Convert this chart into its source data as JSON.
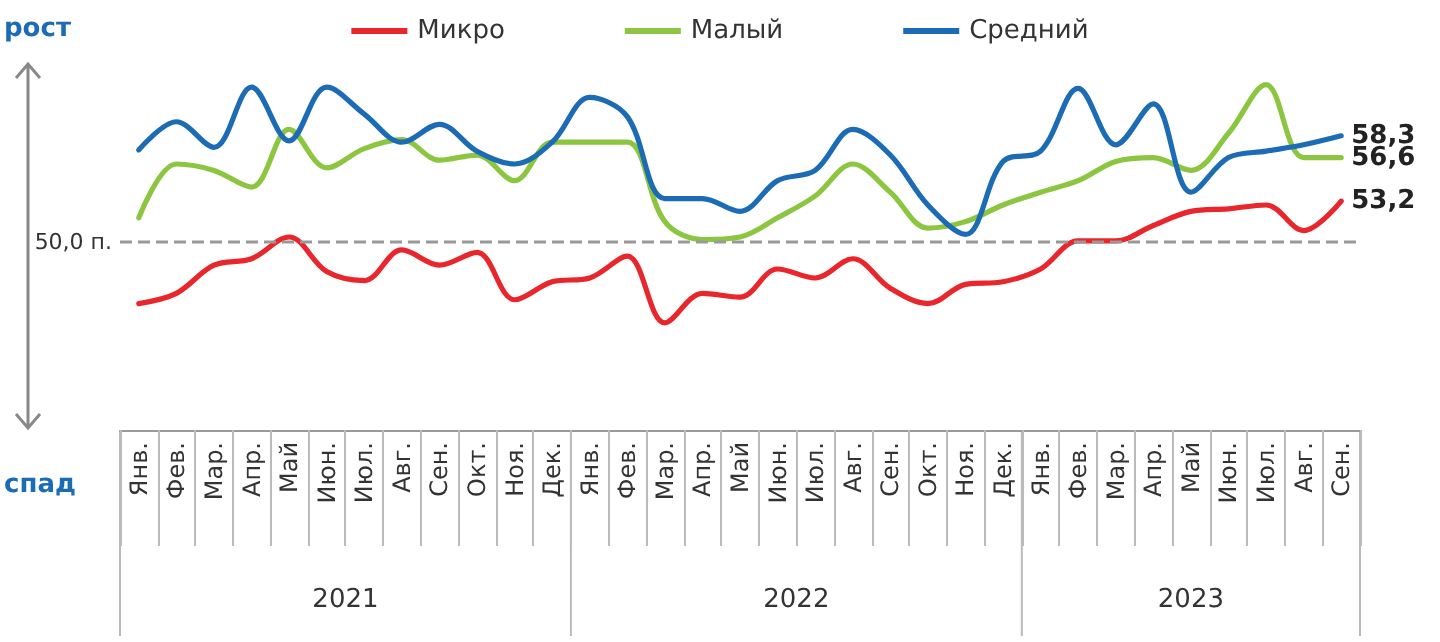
{
  "chart_data": {
    "type": "line",
    "categories": [
      "Янв.",
      "Фев.",
      "Мар.",
      "Апр.",
      "Май",
      "Июн.",
      "Июл.",
      "Авг.",
      "Сен.",
      "Окт.",
      "Ноя.",
      "Дек.",
      "Янв.",
      "Фев.",
      "Мар.",
      "Апр.",
      "Май",
      "Июн.",
      "Июл.",
      "Авг.",
      "Сен.",
      "Окт.",
      "Ноя.",
      "Дек.",
      "Янв.",
      "Фев.",
      "Мар.",
      "Апр.",
      "Май",
      "Июн.",
      "Июл.",
      "Авг.",
      "Сен."
    ],
    "series": [
      {
        "name": "Микро",
        "color": "#e8262b",
        "values": [
          45.2,
          46.0,
          48.2,
          48.7,
          50.4,
          47.7,
          47.0,
          49.4,
          48.2,
          49.2,
          45.5,
          46.9,
          47.2,
          48.9,
          43.7,
          46.0,
          45.7,
          47.9,
          47.2,
          48.7,
          46.4,
          45.2,
          46.7,
          46.9,
          47.9,
          50.1,
          50.1,
          51.3,
          52.4,
          52.6,
          52.9,
          50.9,
          53.2
        ],
        "value_labels": [
          null,
          null,
          null,
          null,
          null,
          null,
          null,
          null,
          null,
          null,
          null,
          null,
          null,
          null,
          null,
          null,
          null,
          null,
          null,
          null,
          null,
          null,
          null,
          null,
          null,
          null,
          null,
          null,
          null,
          null,
          null,
          null,
          "53,2"
        ]
      },
      {
        "name": "Малый",
        "color": "#8cc640",
        "values": [
          51.9,
          56.1,
          55.6,
          54.3,
          58.8,
          55.8,
          57.3,
          58.0,
          56.4,
          56.8,
          54.8,
          57.8,
          57.8,
          57.8,
          51.6,
          50.2,
          50.4,
          51.9,
          53.6,
          56.1,
          53.9,
          51.1,
          51.6,
          52.9,
          53.9,
          54.8,
          56.3,
          56.6,
          55.6,
          58.5,
          62.3,
          56.6,
          56.6
        ],
        "value_labels": [
          null,
          null,
          null,
          null,
          null,
          null,
          null,
          null,
          null,
          null,
          null,
          null,
          null,
          null,
          null,
          null,
          null,
          null,
          null,
          null,
          null,
          null,
          null,
          null,
          null,
          null,
          null,
          null,
          null,
          null,
          null,
          null,
          "56,6"
        ]
      },
      {
        "name": "Средний",
        "color": "#1c6cb5",
        "values": [
          57.2,
          59.4,
          57.4,
          62.1,
          57.9,
          62.1,
          60.0,
          57.8,
          59.2,
          57.1,
          56.1,
          57.8,
          61.3,
          59.8,
          53.4,
          53.4,
          52.4,
          54.8,
          55.6,
          58.8,
          56.8,
          52.9,
          50.6,
          56.3,
          57.1,
          62.0,
          57.6,
          60.8,
          53.9,
          56.6,
          57.1,
          57.6,
          58.3
        ],
        "value_labels": [
          null,
          null,
          null,
          null,
          null,
          null,
          null,
          null,
          null,
          null,
          null,
          null,
          null,
          null,
          null,
          null,
          null,
          null,
          null,
          null,
          null,
          null,
          null,
          null,
          null,
          null,
          null,
          null,
          null,
          null,
          null,
          null,
          "58,3"
        ]
      }
    ],
    "tick_labels": "x",
    "grid": false,
    "legend": "top",
    "marker": "none",
    "ref_lines": [
      {
        "axis": "y",
        "value": 50,
        "label": "50,0 п.",
        "color": "#999999",
        "line_style": "dashed"
      }
    ],
    "annotations": [
      "рост",
      "спад",
      "2021",
      "2022",
      "2023"
    ]
  }
}
